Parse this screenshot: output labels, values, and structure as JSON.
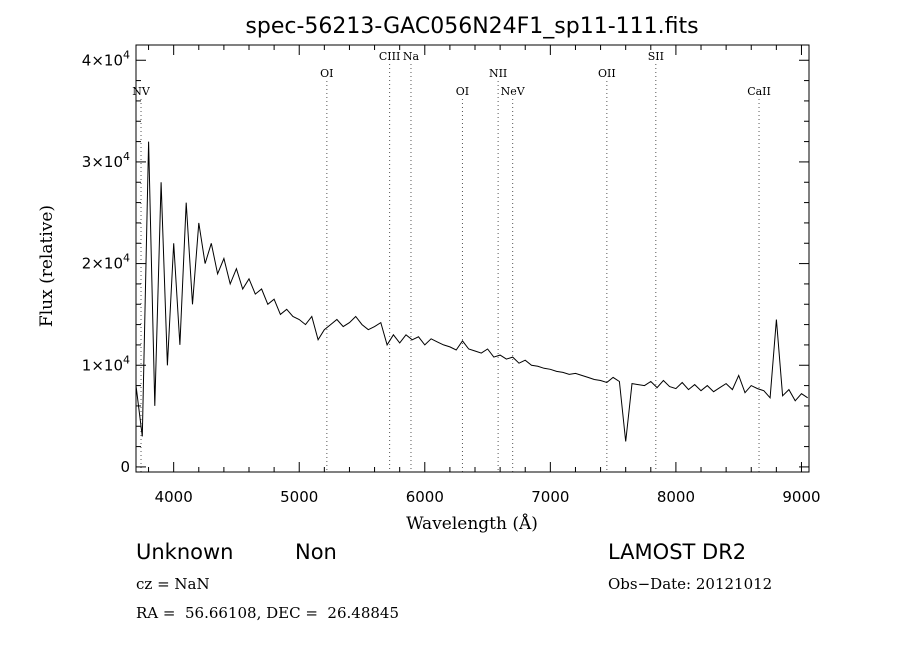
{
  "chart_data": {
    "type": "line",
    "title": "spec-56213-GAC056N24F1_sp11-111.fits",
    "xlabel": "Wavelength (Å)",
    "ylabel": "Flux (relative)",
    "xlim": [
      3700,
      9060
    ],
    "ylim": [
      -500,
      41500
    ],
    "xticks": [
      4000,
      5000,
      6000,
      7000,
      8000,
      9000
    ],
    "xtick_labels": [
      "4000",
      "5000",
      "6000",
      "7000",
      "8000",
      "9000"
    ],
    "yticks": [
      0,
      10000,
      20000,
      30000,
      40000
    ],
    "ytick_labels": [
      {
        "mantissa": "0",
        "exp": ""
      },
      {
        "mantissa": "1×10",
        "exp": "4"
      },
      {
        "mantissa": "2×10",
        "exp": "4"
      },
      {
        "mantissa": "3×10",
        "exp": "4"
      },
      {
        "mantissa": "4×10",
        "exp": "4"
      }
    ],
    "grid": false,
    "lines": [
      {
        "label": "NV",
        "wavelength": 3740,
        "row": 2
      },
      {
        "label": "OI",
        "wavelength": 5220,
        "row": 1
      },
      {
        "label": "CIII",
        "wavelength": 5720,
        "row": 0
      },
      {
        "label": "Na",
        "wavelength": 5890,
        "row": 0
      },
      {
        "label": "OI",
        "wavelength": 6300,
        "row": 2
      },
      {
        "label": "NII",
        "wavelength": 6584,
        "row": 1
      },
      {
        "label": "NeV",
        "wavelength": 6700,
        "row": 2
      },
      {
        "label": "OII",
        "wavelength": 7450,
        "row": 1
      },
      {
        "label": "SII",
        "wavelength": 7840,
        "row": 0
      },
      {
        "label": "CaII",
        "wavelength": 8662,
        "row": 2
      }
    ],
    "series": [
      {
        "x": [
          3700,
          3750,
          3800,
          3850,
          3900,
          3950,
          4000,
          4050,
          4100,
          4150,
          4200,
          4250,
          4300,
          4350,
          4400,
          4450,
          4500,
          4550,
          4600,
          4650,
          4700,
          4750,
          4800,
          4850,
          4900,
          4950,
          5000,
          5050,
          5100,
          5150,
          5200,
          5250,
          5300,
          5350,
          5400,
          5450,
          5500,
          5550,
          5600,
          5650,
          5700,
          5750,
          5800,
          5850,
          5900,
          5950,
          6000,
          6050,
          6100,
          6150,
          6200,
          6250,
          6300,
          6350,
          6400,
          6450,
          6500,
          6550,
          6600,
          6650,
          6700,
          6750,
          6800,
          6850,
          6900,
          6950,
          7000,
          7050,
          7100,
          7150,
          7200,
          7250,
          7300,
          7350,
          7400,
          7450,
          7500,
          7550,
          7600,
          7650,
          7700,
          7750,
          7800,
          7850,
          7900,
          7950,
          8000,
          8050,
          8100,
          8150,
          8200,
          8250,
          8300,
          8350,
          8400,
          8450,
          8500,
          8550,
          8600,
          8650,
          8700,
          8750,
          8800,
          8850,
          8900,
          8950,
          9000,
          9050
        ],
        "y": [
          8000,
          3000,
          32000,
          6000,
          28000,
          10000,
          22000,
          12000,
          26000,
          16000,
          24000,
          20000,
          22000,
          19000,
          20500,
          18000,
          19500,
          17500,
          18500,
          17000,
          17500,
          16000,
          16500,
          15000,
          15500,
          14800,
          14500,
          14000,
          14800,
          12500,
          13500,
          14000,
          14500,
          13800,
          14200,
          14800,
          14000,
          13500,
          13800,
          14200,
          12000,
          13000,
          12200,
          13000,
          12500,
          12800,
          12000,
          12600,
          12300,
          12000,
          11800,
          11500,
          12400,
          11600,
          11400,
          11200,
          11600,
          10800,
          11000,
          10600,
          10800,
          10200,
          10500,
          10000,
          9900,
          9700,
          9600,
          9400,
          9300,
          9100,
          9200,
          9000,
          8800,
          8600,
          8500,
          8300,
          8800,
          8400,
          2500,
          8200,
          8100,
          8000,
          8400,
          7800,
          8500,
          7900,
          7700,
          8300,
          7600,
          8100,
          7500,
          8000,
          7400,
          7800,
          8200,
          7600,
          9000,
          7300,
          8000,
          7700,
          7500,
          6800,
          14500,
          7000,
          7600,
          6500,
          7200,
          6800
        ]
      }
    ]
  },
  "info": {
    "class_label": "Unknown",
    "subclass_label": "Non",
    "survey": "LAMOST DR2",
    "cz": "cz = NaN",
    "obs_date": "Obs−Date: 20121012",
    "coords": "RA =  56.66108, DEC =  26.48845"
  }
}
